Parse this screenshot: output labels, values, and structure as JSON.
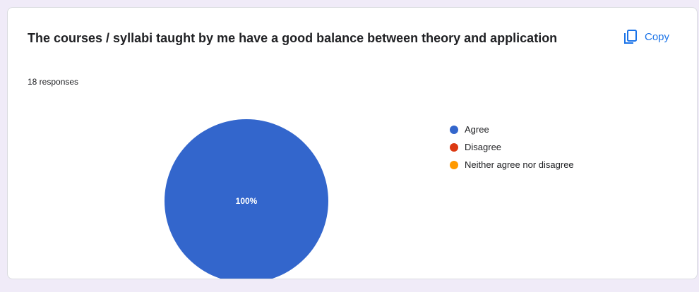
{
  "question": {
    "title": "The courses / syllabi taught by me have a good balance between theory and application",
    "responses": "18 responses"
  },
  "copy_button": {
    "label": "Copy",
    "icon": "copy-icon"
  },
  "chart_data": {
    "type": "pie",
    "categories": [
      "Agree",
      "Disagree",
      "Neither agree nor disagree"
    ],
    "values": [
      100,
      0,
      0
    ],
    "data_labels": [
      "100%",
      "",
      ""
    ],
    "colors": [
      "#3366cc",
      "#dc3912",
      "#ff9900"
    ],
    "legend_position": "right"
  }
}
